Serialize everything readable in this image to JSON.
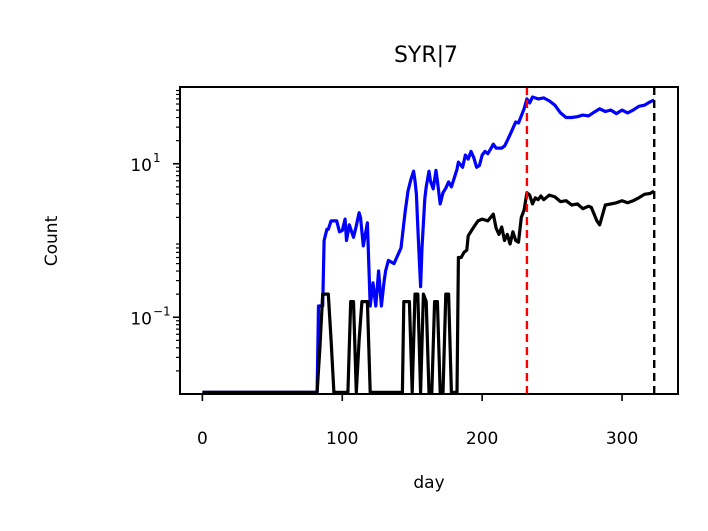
{
  "chart_data": {
    "type": "line",
    "title": "SYR|7",
    "xlabel": "day",
    "ylabel": "Count",
    "xlim": [
      -16,
      340
    ],
    "ylim": [
      0.01,
      100
    ],
    "yscale": "log",
    "xticks": [
      {
        "value": 0,
        "label": "0"
      },
      {
        "value": 100,
        "label": "100"
      },
      {
        "value": 200,
        "label": "200"
      },
      {
        "value": 300,
        "label": "300"
      }
    ],
    "yticks": [
      {
        "value": 0.1,
        "base": "10",
        "exp": "−1"
      },
      {
        "value": 10,
        "base": "10",
        "exp": "1"
      }
    ],
    "vlines": [
      {
        "x": 232,
        "color": "#ff0000",
        "style": "dashed"
      },
      {
        "x": 323,
        "color": "#000000",
        "style": "dashed"
      }
    ],
    "series": [
      {
        "color": "#0000ff",
        "points": [
          [
            0,
            0.0105
          ],
          [
            82,
            0.0105
          ],
          [
            83,
            0.14
          ],
          [
            86,
            0.14
          ],
          [
            87,
            1.0
          ],
          [
            89,
            1.4
          ],
          [
            90,
            1.4
          ],
          [
            92,
            1.8
          ],
          [
            96,
            1.8
          ],
          [
            98,
            1.3
          ],
          [
            100,
            1.35
          ],
          [
            102,
            1.9
          ],
          [
            103,
            1.0
          ],
          [
            105,
            1.6
          ],
          [
            108,
            1.1
          ],
          [
            110,
            1.55
          ],
          [
            111,
            1.9
          ],
          [
            112,
            2.3
          ],
          [
            113,
            2.0
          ],
          [
            115,
            0.85
          ],
          [
            118,
            1.7
          ],
          [
            120,
            0.14
          ],
          [
            122,
            0.28
          ],
          [
            124,
            0.14
          ],
          [
            126,
            0.4
          ],
          [
            128,
            0.14
          ],
          [
            130,
            0.3
          ],
          [
            131,
            0.4
          ],
          [
            133,
            0.55
          ],
          [
            137,
            0.5
          ],
          [
            142,
            0.8
          ],
          [
            145,
            2.4
          ],
          [
            147,
            4.4
          ],
          [
            149,
            6.2
          ],
          [
            151,
            8.0
          ],
          [
            152,
            6.0
          ],
          [
            153,
            4.0
          ],
          [
            154,
            1.5
          ],
          [
            155,
            0.6
          ],
          [
            156,
            0.25
          ],
          [
            157,
            0.8
          ],
          [
            159,
            3.5
          ],
          [
            160,
            5.0
          ],
          [
            162,
            8.0
          ],
          [
            163,
            6.0
          ],
          [
            165,
            4.7
          ],
          [
            167,
            8.2
          ],
          [
            168,
            6.0
          ],
          [
            170,
            3.0
          ],
          [
            172,
            4.2
          ],
          [
            174,
            4.8
          ],
          [
            176,
            5.8
          ],
          [
            178,
            5.0
          ],
          [
            180,
            6.5
          ],
          [
            182,
            8.5
          ],
          [
            183,
            10.5
          ],
          [
            186,
            9.0
          ],
          [
            188,
            13.0
          ],
          [
            190,
            11.5
          ],
          [
            192,
            14.5
          ],
          [
            194,
            12.0
          ],
          [
            196,
            9.0
          ],
          [
            198,
            9.5
          ],
          [
            200,
            13.0
          ],
          [
            202,
            14.5
          ],
          [
            204,
            13.5
          ],
          [
            206,
            15.5
          ],
          [
            208,
            18.0
          ],
          [
            210,
            16.0
          ],
          [
            214,
            16.0
          ],
          [
            216,
            17.0
          ],
          [
            218,
            20.0
          ],
          [
            220,
            24.0
          ],
          [
            222,
            29.0
          ],
          [
            224,
            35.0
          ],
          [
            226,
            34.0
          ],
          [
            230,
            52.0
          ],
          [
            232,
            70.0
          ],
          [
            234,
            62.0
          ],
          [
            236,
            74.0
          ],
          [
            240,
            70.0
          ],
          [
            244,
            72.0
          ],
          [
            248,
            66.0
          ],
          [
            252,
            58.0
          ],
          [
            256,
            46.0
          ],
          [
            260,
            40.0
          ],
          [
            264,
            40.0
          ],
          [
            268,
            41.0
          ],
          [
            272,
            43.0
          ],
          [
            276,
            42.0
          ],
          [
            280,
            47.0
          ],
          [
            284,
            52.0
          ],
          [
            288,
            48.0
          ],
          [
            292,
            50.0
          ],
          [
            296,
            45.0
          ],
          [
            300,
            50.0
          ],
          [
            304,
            46.0
          ],
          [
            308,
            50.0
          ],
          [
            312,
            56.0
          ],
          [
            316,
            58.0
          ],
          [
            320,
            64.0
          ],
          [
            323,
            68.0
          ]
        ]
      },
      {
        "color": "#000000",
        "points": [
          [
            0,
            0.0105
          ],
          [
            82,
            0.0105
          ],
          [
            84,
            0.04
          ],
          [
            86,
            0.2
          ],
          [
            90,
            0.2
          ],
          [
            92,
            0.05
          ],
          [
            94,
            0.0105
          ],
          [
            104,
            0.0105
          ],
          [
            106,
            0.16
          ],
          [
            108,
            0.16
          ],
          [
            110,
            0.0105
          ],
          [
            112,
            0.05
          ],
          [
            114,
            0.16
          ],
          [
            118,
            0.16
          ],
          [
            120,
            0.0105
          ],
          [
            126,
            0.0105
          ],
          [
            130,
            0.0105
          ],
          [
            135,
            0.0105
          ],
          [
            143,
            0.0105
          ],
          [
            144,
            0.16
          ],
          [
            148,
            0.16
          ],
          [
            150,
            0.0105
          ],
          [
            152,
            0.2
          ],
          [
            154,
            0.2
          ],
          [
            156,
            0.0105
          ],
          [
            158,
            0.2
          ],
          [
            160,
            0.16
          ],
          [
            162,
            0.0105
          ],
          [
            164,
            0.0105
          ],
          [
            166,
            0.16
          ],
          [
            168,
            0.16
          ],
          [
            170,
            0.0105
          ],
          [
            172,
            0.0105
          ],
          [
            174,
            0.2
          ],
          [
            176,
            0.2
          ],
          [
            178,
            0.0105
          ],
          [
            182,
            0.0105
          ],
          [
            183,
            0.6
          ],
          [
            185,
            0.6
          ],
          [
            187,
            0.7
          ],
          [
            189,
            0.75
          ],
          [
            190,
            1.15
          ],
          [
            194,
            1.5
          ],
          [
            197,
            1.8
          ],
          [
            200,
            1.9
          ],
          [
            204,
            1.8
          ],
          [
            208,
            2.2
          ],
          [
            210,
            1.45
          ],
          [
            212,
            1.2
          ],
          [
            214,
            1.5
          ],
          [
            216,
            1.0
          ],
          [
            218,
            1.2
          ],
          [
            220,
            0.9
          ],
          [
            222,
            1.3
          ],
          [
            224,
            1.0
          ],
          [
            226,
            0.95
          ],
          [
            228,
            2.0
          ],
          [
            230,
            2.5
          ],
          [
            232,
            4.2
          ],
          [
            234,
            3.9
          ],
          [
            236,
            3.0
          ],
          [
            238,
            3.6
          ],
          [
            240,
            3.4
          ],
          [
            242,
            3.8
          ],
          [
            244,
            3.4
          ],
          [
            248,
            3.9
          ],
          [
            252,
            3.7
          ],
          [
            256,
            3.2
          ],
          [
            260,
            3.3
          ],
          [
            264,
            2.9
          ],
          [
            268,
            3.0
          ],
          [
            272,
            2.6
          ],
          [
            276,
            2.8
          ],
          [
            278,
            2.7
          ],
          [
            282,
            1.8
          ],
          [
            284,
            1.6
          ],
          [
            288,
            2.9
          ],
          [
            292,
            3.0
          ],
          [
            296,
            3.1
          ],
          [
            300,
            3.3
          ],
          [
            304,
            3.1
          ],
          [
            308,
            3.3
          ],
          [
            312,
            3.6
          ],
          [
            316,
            4.0
          ],
          [
            320,
            4.1
          ],
          [
            323,
            4.4
          ]
        ]
      }
    ]
  }
}
